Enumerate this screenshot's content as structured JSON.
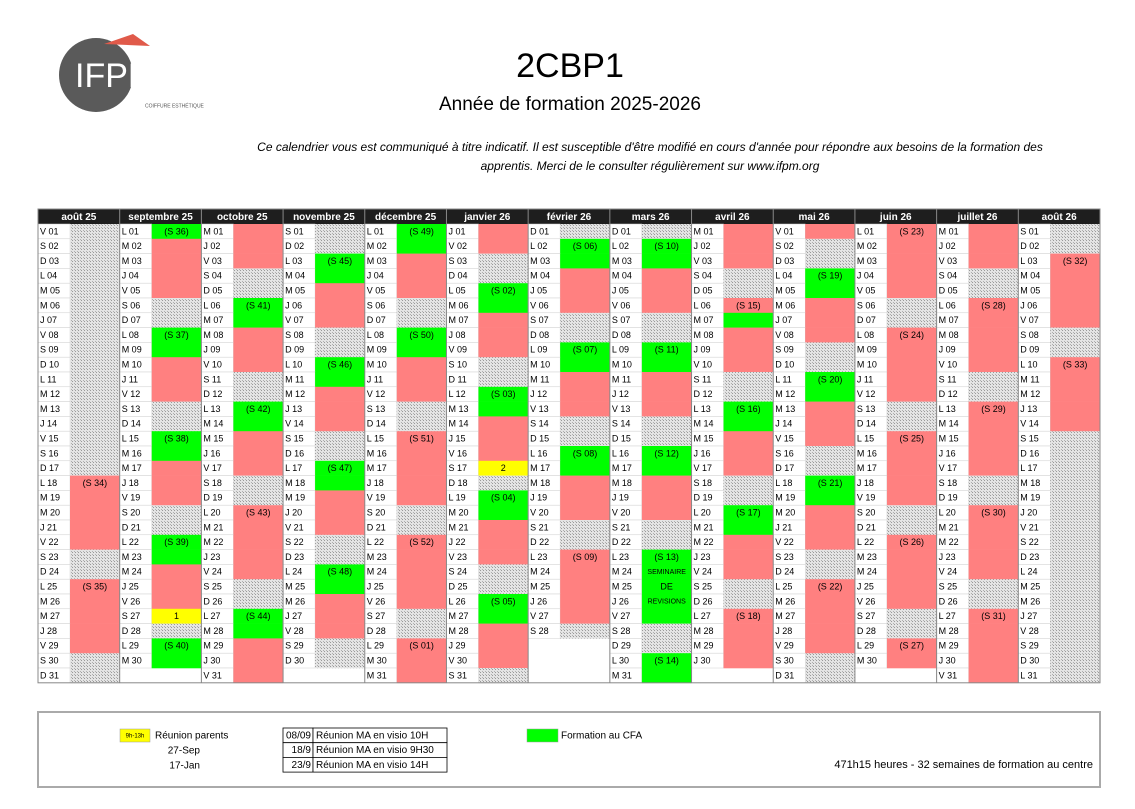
{
  "header": {
    "logo": "IFPM",
    "logo_sub": "COIFFURE ESTHÉTIQUE",
    "title": "2CBP1",
    "subtitle": "Année de formation 2025-2026",
    "notice": [
      "Ce calendrier vous est communiqué à titre indicatif. Il est susceptible d'être modifié en cours d'année pour répondre aux besoins de la formation des",
      "apprentis. Merci de le consulter régulièrement sur www.ifpm.org"
    ]
  },
  "calendar": {
    "colors": {
      "f": "#00ff00",
      "e": "#ff8080",
      "y": "#ffff00",
      "w": "hatch"
    },
    "months": [
      {
        "name": "août 25",
        "days": [
          "V 01",
          "S 02",
          "D 03",
          "L 04",
          "M 05",
          "M 06",
          "J 07",
          "V 08",
          "S 09",
          "D 10",
          "L 11",
          "M 12",
          "M 13",
          "J 14",
          "V 15",
          "S 16",
          "D 17",
          "L 18",
          "M 19",
          "M 20",
          "J 21",
          "V 22",
          "S 23",
          "D 24",
          "L 25",
          "M 26",
          "M 27",
          "J 28",
          "V 29",
          "S 30",
          "D 31"
        ],
        "status": "wwwwwwwwwwwwwwwwweeeeewweeeeeww",
        "labels": [
          {
            "day": 18,
            "text": "(S 34)"
          },
          {
            "day": 25,
            "text": "(S 35)"
          }
        ]
      },
      {
        "name": "septembre 25",
        "days": [
          "L 01",
          "M 02",
          "M 03",
          "J 04",
          "V 05",
          "S 06",
          "D 07",
          "L 08",
          "M 09",
          "M 10",
          "J 11",
          "V 12",
          "S 13",
          "D 14",
          "L 15",
          "M 16",
          "M 17",
          "J 18",
          "V 19",
          "S 20",
          "D 21",
          "L 22",
          "M 23",
          "M 24",
          "J 25",
          "V 26",
          "S 27",
          "D 28",
          "L 29",
          "M 30"
        ],
        "status": "feeeewwffeeewwffeeewwffeeeywff",
        "labels": [
          {
            "day": 1,
            "text": "(S 36)"
          },
          {
            "day": 8,
            "text": "(S 37)"
          },
          {
            "day": 15,
            "text": "(S 38)"
          },
          {
            "day": 22,
            "text": "(S 39)"
          },
          {
            "day": 27,
            "text": "1"
          },
          {
            "day": 29,
            "text": "(S 40)"
          }
        ]
      },
      {
        "name": "octobre 25",
        "days": [
          "M 01",
          "J 02",
          "V 03",
          "S 04",
          "D 05",
          "L 06",
          "M 07",
          "M 08",
          "J 09",
          "V 10",
          "S 11",
          "D 12",
          "L 13",
          "M 14",
          "M 15",
          "J 16",
          "V 17",
          "S 18",
          "D 19",
          "L 20",
          "M 21",
          "M 22",
          "J 23",
          "V 24",
          "S 25",
          "D 26",
          "L 27",
          "M 28",
          "M 29",
          "J 30",
          "V 31"
        ],
        "status": "eeewwffeeewwffeeewweeeeewwffeee",
        "labels": [
          {
            "day": 6,
            "text": "(S 41)"
          },
          {
            "day": 13,
            "text": "(S 42)"
          },
          {
            "day": 20,
            "text": "(S 43)"
          },
          {
            "day": 27,
            "text": "(S 44)"
          }
        ]
      },
      {
        "name": "novembre 25",
        "days": [
          "S 01",
          "D 02",
          "L 03",
          "M 04",
          "M 05",
          "J 06",
          "V 07",
          "S 08",
          "D 09",
          "L 10",
          "M 11",
          "M 12",
          "J 13",
          "V 14",
          "S 15",
          "D 16",
          "L 17",
          "M 18",
          "M 19",
          "J 20",
          "V 21",
          "S 22",
          "D 23",
          "L 24",
          "M 25",
          "M 26",
          "J 27",
          "V 28",
          "S 29",
          "D 30"
        ],
        "status": "wwffeeewwffeeewwffeeewwffeeeww",
        "labels": [
          {
            "day": 3,
            "text": "(S 45)"
          },
          {
            "day": 10,
            "text": "(S 46)"
          },
          {
            "day": 17,
            "text": "(S 47)"
          },
          {
            "day": 24,
            "text": "(S 48)"
          }
        ]
      },
      {
        "name": "décembre 25",
        "days": [
          "L 01",
          "M 02",
          "M 03",
          "J 04",
          "V 05",
          "S 06",
          "D 07",
          "L 08",
          "M 09",
          "M 10",
          "J 11",
          "V 12",
          "S 13",
          "D 14",
          "L 15",
          "M 16",
          "M 17",
          "J 18",
          "V 19",
          "S 20",
          "D 21",
          "L 22",
          "M 23",
          "M 24",
          "J 25",
          "V 26",
          "S 27",
          "D 28",
          "L 29",
          "M 30",
          "M 31"
        ],
        "status": "ffeeewwffeeewweeeeewweeeeewweee",
        "labels": [
          {
            "day": 1,
            "text": "(S 49)"
          },
          {
            "day": 8,
            "text": "(S 50)"
          },
          {
            "day": 15,
            "text": "(S 51)"
          },
          {
            "day": 22,
            "text": "(S 52)"
          },
          {
            "day": 29,
            "text": "(S 01)"
          }
        ]
      },
      {
        "name": "janvier 26",
        "days": [
          "J 01",
          "V 02",
          "S 03",
          "D 04",
          "L 05",
          "M 06",
          "M 07",
          "J 08",
          "V 09",
          "S 10",
          "D 11",
          "L 12",
          "M 13",
          "M 14",
          "J 15",
          "V 16",
          "S 17",
          "D 18",
          "L 19",
          "M 20",
          "M 21",
          "J 22",
          "V 23",
          "S 24",
          "D 25",
          "L 26",
          "M 27",
          "M 28",
          "J 29",
          "V 30",
          "S 31"
        ],
        "status": "eewwffeeewwffeeeywffeeewwffeeew",
        "labels": [
          {
            "day": 5,
            "text": "(S 02)"
          },
          {
            "day": 12,
            "text": "(S 03)"
          },
          {
            "day": 17,
            "text": "2"
          },
          {
            "day": 19,
            "text": "(S 04)"
          },
          {
            "day": 26,
            "text": "(S 05)"
          }
        ]
      },
      {
        "name": "février 26",
        "days": [
          "D 01",
          "L 02",
          "M 03",
          "M 04",
          "J 05",
          "V 06",
          "S 07",
          "D 08",
          "L 09",
          "M 10",
          "M 11",
          "J 12",
          "V 13",
          "S 14",
          "D 15",
          "L 16",
          "M 17",
          "M 18",
          "J 19",
          "V 20",
          "S 21",
          "D 22",
          "L 23",
          "M 24",
          "M 25",
          "J 26",
          "V 27",
          "S 28"
        ],
        "status": "wffeeewwffeeewwffeeewweeeeew",
        "labels": [
          {
            "day": 2,
            "text": "(S 06)"
          },
          {
            "day": 9,
            "text": "(S 07)"
          },
          {
            "day": 16,
            "text": "(S 08)"
          },
          {
            "day": 23,
            "text": "(S 09)"
          }
        ]
      },
      {
        "name": "mars 26",
        "days": [
          "D 01",
          "L 02",
          "M 03",
          "M 04",
          "J 05",
          "V 06",
          "S 07",
          "D 08",
          "L 09",
          "M 10",
          "M 11",
          "J 12",
          "V 13",
          "S 14",
          "D 15",
          "L 16",
          "M 17",
          "M 18",
          "J 19",
          "V 20",
          "S 21",
          "D 22",
          "L 23",
          "M 24",
          "M 25",
          "J 26",
          "V 27",
          "S 28",
          "D 29",
          "L 30",
          "M 31"
        ],
        "status": "wffeeewwffeeewwffeeewwfffffwwff",
        "labels": [
          {
            "day": 2,
            "text": "(S 10)"
          },
          {
            "day": 9,
            "text": "(S 11)"
          },
          {
            "day": 16,
            "text": "(S 12)"
          },
          {
            "day": 23,
            "text": "(S 13)"
          },
          {
            "day": 24,
            "text": "SEMINAIRE"
          },
          {
            "day": 25,
            "text": "DE"
          },
          {
            "day": 26,
            "text": "REVISIONS"
          },
          {
            "day": 30,
            "text": "(S 14)"
          }
        ]
      },
      {
        "name": "avril 26",
        "days": [
          "M 01",
          "J 02",
          "V 03",
          "S 04",
          "D 05",
          "L 06",
          "M 07",
          "M 08",
          "J 09",
          "V 10",
          "S 11",
          "D 12",
          "L 13",
          "M 14",
          "M 15",
          "J 16",
          "V 17",
          "S 18",
          "D 19",
          "L 20",
          "M 21",
          "M 22",
          "J 23",
          "V 24",
          "S 25",
          "D 26",
          "L 27",
          "M 28",
          "M 29",
          "J 30"
        ],
        "status": "eeewwefeeewwffeeewwffeeewweeee",
        "labels": [
          {
            "day": 6,
            "text": "(S 15)"
          },
          {
            "day": 13,
            "text": "(S 16)"
          },
          {
            "day": 20,
            "text": "(S 17)"
          },
          {
            "day": 27,
            "text": "(S 18)"
          }
        ]
      },
      {
        "name": "mai 26",
        "days": [
          "V 01",
          "S 02",
          "D 03",
          "L 04",
          "M 05",
          "M 06",
          "J 07",
          "V 08",
          "S 09",
          "D 10",
          "L 11",
          "M 12",
          "M 13",
          "J 14",
          "V 15",
          "S 16",
          "D 17",
          "L 18",
          "M 19",
          "M 20",
          "J 21",
          "V 22",
          "S 23",
          "D 24",
          "L 25",
          "M 26",
          "M 27",
          "J 28",
          "V 29",
          "S 30",
          "D 31"
        ],
        "status": "ewwffeeewwffeeewwffeeewweeeeeww",
        "labels": [
          {
            "day": 4,
            "text": "(S 19)"
          },
          {
            "day": 11,
            "text": "(S 20)"
          },
          {
            "day": 18,
            "text": "(S 21)"
          },
          {
            "day": 25,
            "text": "(S 22)"
          }
        ]
      },
      {
        "name": "juin 26",
        "days": [
          "L 01",
          "M 02",
          "M 03",
          "J 04",
          "V 05",
          "S 06",
          "D 07",
          "L 08",
          "M 09",
          "M 10",
          "J 11",
          "V 12",
          "S 13",
          "D 14",
          "L 15",
          "M 16",
          "M 17",
          "J 18",
          "V 19",
          "S 20",
          "D 21",
          "L 22",
          "M 23",
          "M 24",
          "J 25",
          "V 26",
          "S 27",
          "D 28",
          "L 29",
          "M 30"
        ],
        "status": "eeeeewweeeeewweeeeewweeeeewwee",
        "labels": [
          {
            "day": 1,
            "text": "(S 23)"
          },
          {
            "day": 8,
            "text": "(S 24)"
          },
          {
            "day": 15,
            "text": "(S 25)"
          },
          {
            "day": 22,
            "text": "(S 26)"
          },
          {
            "day": 29,
            "text": "(S 27)"
          }
        ]
      },
      {
        "name": "juillet 26",
        "days": [
          "M 01",
          "J 02",
          "V 03",
          "S 04",
          "D 05",
          "L 06",
          "M 07",
          "M 08",
          "J 09",
          "V 10",
          "S 11",
          "D 12",
          "L 13",
          "M 14",
          "M 15",
          "J 16",
          "V 17",
          "S 18",
          "D 19",
          "L 20",
          "M 21",
          "M 22",
          "J 23",
          "V 24",
          "S 25",
          "D 26",
          "L 27",
          "M 28",
          "M 29",
          "J 30",
          "V 31"
        ],
        "status": "eeewweeeeewweeeeewweeeeewweeeee",
        "labels": [
          {
            "day": 6,
            "text": "(S 28)"
          },
          {
            "day": 13,
            "text": "(S 29)"
          },
          {
            "day": 20,
            "text": "(S 30)"
          },
          {
            "day": 27,
            "text": "(S 31)"
          }
        ]
      },
      {
        "name": "août 26",
        "days": [
          "S 01",
          "D 02",
          "L 03",
          "M 04",
          "M 05",
          "J 06",
          "V 07",
          "S 08",
          "D 09",
          "L 10",
          "M 11",
          "M 12",
          "J 13",
          "V 14",
          "S 15",
          "D 16",
          "L 17",
          "M 18",
          "M 19",
          "J 20",
          "V 21",
          "S 22",
          "D 23",
          "L 24",
          "M 25",
          "M 26",
          "J 27",
          "V 28",
          "S 29",
          "D 30",
          "L 31"
        ],
        "status": "wweeeeewweeeeewwwwwwwwwwwwwwwww",
        "labels": [
          {
            "day": 3,
            "text": "(S 32)"
          },
          {
            "day": 10,
            "text": "(S 33)"
          }
        ]
      }
    ]
  },
  "legend": {
    "parents_time": "9h-13h",
    "parents_label": "Réunion parents",
    "parents_dates": [
      "27-Sep",
      "17-Jan"
    ],
    "meetings": [
      [
        "08/09",
        "Réunion MA en visio 10H"
      ],
      [
        "18/9",
        "Réunion MA en visio 9H30"
      ],
      [
        "23/9",
        "Réunion MA en visio 14H"
      ]
    ],
    "cfa": "Formation au CFA",
    "total": "471h15 heures - 32 semaines de formation au centre"
  }
}
